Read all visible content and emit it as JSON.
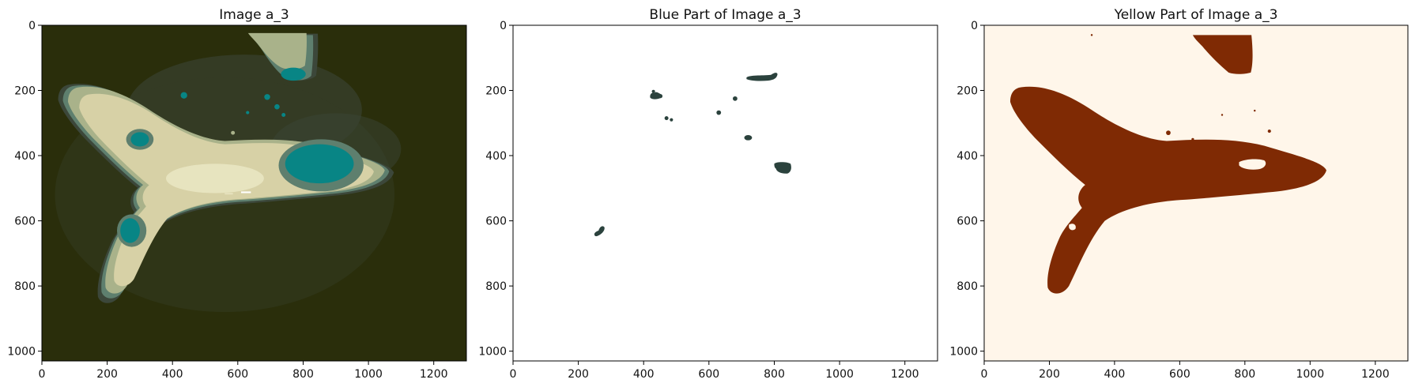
{
  "figure": {
    "panels": [
      {
        "id": "a3-image",
        "title": "Image a_3",
        "background": "#2a2e0b",
        "colors": {
          "outer_halo": "#3c473a",
          "mid": "#5e7f6e",
          "pale": "#a9b28a",
          "light": "#d7d1a6",
          "bright": "#e9e5c2",
          "teal": "#088585",
          "speck": "#ffffff"
        }
      },
      {
        "id": "blue-part",
        "title": "Blue Part of Image a_3",
        "background": "#ffffff",
        "colors": {
          "blob": "#2b423d"
        }
      },
      {
        "id": "yellow-part",
        "title": "Yellow Part of Image a_3",
        "background": "#fff6ea",
        "colors": {
          "shape": "#7f2a04",
          "hole": "#fff6ea"
        }
      }
    ],
    "axes": {
      "x_ticks": [
        "0",
        "200",
        "400",
        "600",
        "800",
        "1000",
        "1200"
      ],
      "y_ticks": [
        "0",
        "200",
        "400",
        "600",
        "800",
        "1000"
      ],
      "xlim": [
        0,
        1300
      ],
      "ylim": [
        1030,
        0
      ]
    }
  }
}
